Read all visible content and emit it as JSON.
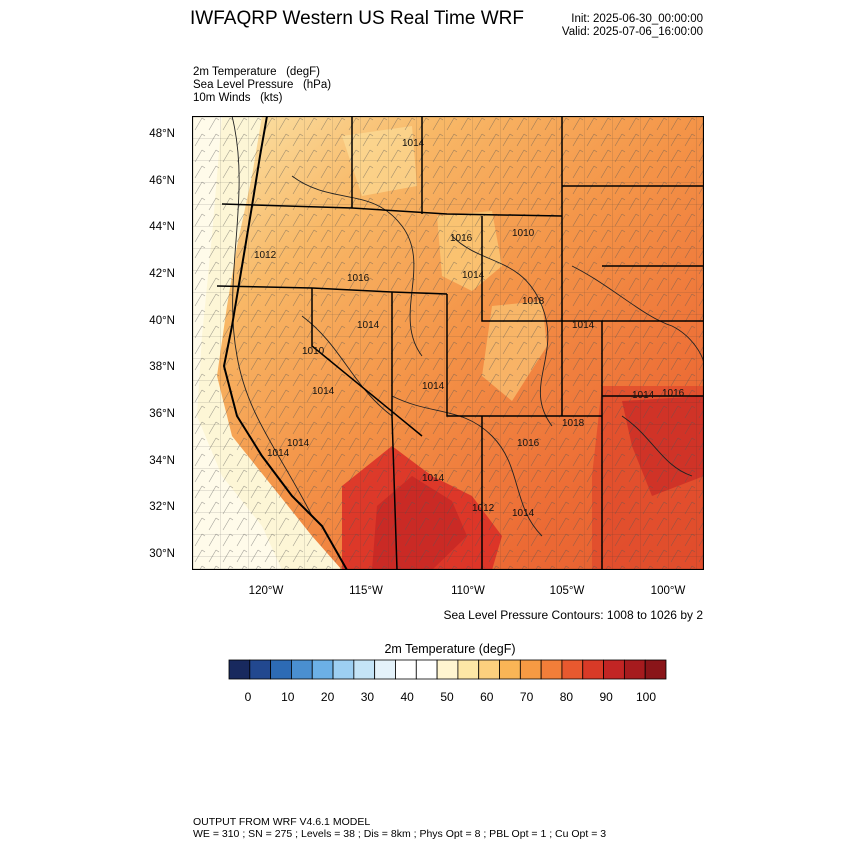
{
  "header": {
    "title": "IWFAQRP Western US Real Time WRF",
    "init": "Init: 2025-06-30_00:00:00",
    "valid": "Valid: 2025-07-06_16:00:00"
  },
  "fields": {
    "temperature": "2m Temperature   (degF)",
    "pressure": "Sea Level Pressure   (hPa)",
    "winds": "10m Winds   (kts)"
  },
  "map": {
    "lat_labels": [
      "48°N",
      "46°N",
      "44°N",
      "42°N",
      "40°N",
      "38°N",
      "36°N",
      "34°N",
      "32°N",
      "30°N"
    ],
    "lon_labels": [
      "120°W",
      "115°W",
      "110°W",
      "105°W",
      "100°W"
    ],
    "isobar_labels": [
      "1014",
      "1012",
      "1016",
      "1016",
      "1014",
      "1010",
      "1018",
      "1014",
      "1014",
      "1010",
      "1014",
      "1014",
      "1018",
      "1016",
      "1014",
      "1014",
      "1014",
      "1012",
      "1014",
      "1014",
      "1016"
    ],
    "colors": {
      "cold_coast": "#fdf6d6",
      "warm": "#f7a24a",
      "hot": "#d92b26"
    }
  },
  "contours_note": "Sea Level Pressure Contours: 1008 to 1026 by 2",
  "colorbar": {
    "title": "2m Temperature   (degF)",
    "labels": [
      "0",
      "10",
      "20",
      "30",
      "40",
      "50",
      "60",
      "70",
      "80",
      "90",
      "100"
    ],
    "colors": [
      "#18295e",
      "#22488f",
      "#2d6bb5",
      "#4a8fd0",
      "#6cb0e6",
      "#9dcff2",
      "#c4e4f7",
      "#e4f2fa",
      "#ffffff",
      "#ffffff",
      "#fff5d0",
      "#fde7a6",
      "#fcd07e",
      "#f9b556",
      "#f79a43",
      "#f27e39",
      "#e8592f",
      "#d83a27",
      "#c22524",
      "#a61b1e",
      "#8a1519"
    ]
  },
  "footer": {
    "line1": "OUTPUT FROM WRF V4.6.1 MODEL",
    "line2": "WE = 310 ; SN = 275 ; Levels = 38 ; Dis = 8km ; Phys Opt = 8 ; PBL Opt = 1 ; Cu Opt = 3"
  }
}
